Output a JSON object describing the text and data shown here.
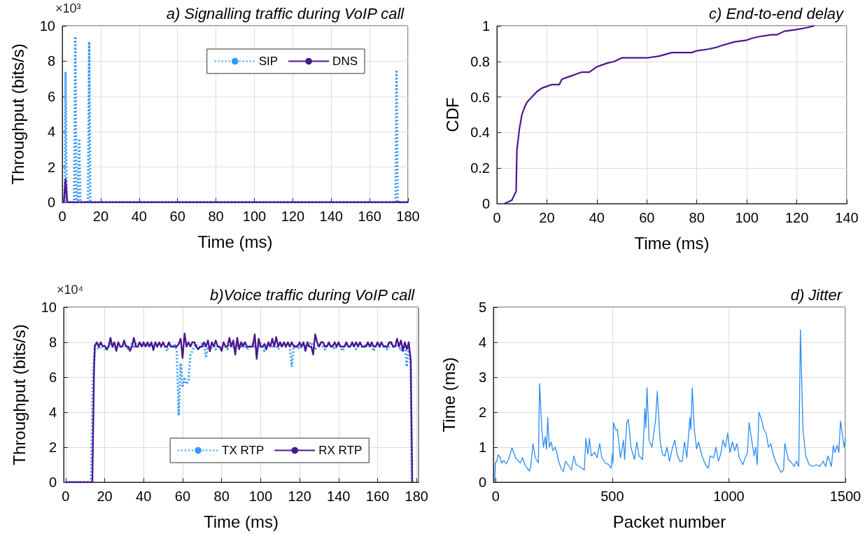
{
  "chart_data": [
    {
      "type": "line",
      "title": "a) Signalling traffic during VoIP call",
      "xlabel": "Time (ms)",
      "ylabel": "Throughput (bits/s)",
      "annotations": [
        "×10³"
      ],
      "xlim": [
        0,
        180
      ],
      "xticks": [
        0,
        20,
        40,
        60,
        80,
        100,
        120,
        140,
        160,
        180
      ],
      "ylim": [
        0,
        10
      ],
      "yticks": [
        0,
        2,
        4,
        6,
        8,
        10
      ],
      "grid": true,
      "legend": "top right",
      "series": [
        {
          "name": "SIP",
          "color": "#3399ff",
          "line_style": "dotted",
          "x": [
            0,
            1.2,
            1.7,
            2.3,
            6.2,
            6.8,
            7.4,
            8.2,
            8.8,
            9.5,
            13.4,
            14,
            14.6,
            173.5,
            174,
            174.6,
            180
          ],
          "values": [
            0,
            0,
            7.4,
            0,
            0,
            9.4,
            0,
            0,
            3.6,
            0,
            0,
            9.1,
            0,
            0,
            7.5,
            0,
            0
          ]
        },
        {
          "name": "DNS",
          "color": "#4b1790",
          "line_style": "solid",
          "x": [
            0,
            0.8,
            1.7,
            2.6,
            180
          ],
          "values": [
            0,
            0,
            1.3,
            0,
            0
          ]
        }
      ]
    },
    {
      "type": "line",
      "title": "c) End-to-end delay",
      "xlabel": "Time (ms)",
      "ylabel": "CDF",
      "xlim": [
        0,
        140
      ],
      "xticks": [
        0,
        20,
        40,
        60,
        80,
        100,
        120,
        140
      ],
      "ylim": [
        0,
        1
      ],
      "yticks": [
        0,
        0.2,
        0.4,
        0.6,
        0.8,
        1
      ],
      "grid": true,
      "series": [
        {
          "color": "#4b1790",
          "line_style": "solid",
          "x": [
            3,
            6,
            7.7,
            8,
            9,
            10,
            11,
            12,
            14,
            16,
            18,
            20,
            22,
            25,
            26,
            28,
            30,
            32,
            34,
            37,
            40,
            42,
            44,
            47,
            50,
            55,
            60,
            65,
            70,
            75,
            78,
            80,
            85,
            88,
            90,
            95,
            100,
            102,
            105,
            110,
            112,
            115,
            120,
            124,
            127
          ],
          "values": [
            0,
            0.02,
            0.07,
            0.3,
            0.42,
            0.5,
            0.54,
            0.57,
            0.6,
            0.63,
            0.65,
            0.66,
            0.67,
            0.67,
            0.7,
            0.71,
            0.72,
            0.73,
            0.74,
            0.74,
            0.77,
            0.78,
            0.79,
            0.8,
            0.82,
            0.82,
            0.82,
            0.83,
            0.85,
            0.85,
            0.85,
            0.86,
            0.87,
            0.88,
            0.89,
            0.91,
            0.92,
            0.93,
            0.94,
            0.95,
            0.95,
            0.97,
            0.98,
            0.99,
            1
          ]
        }
      ]
    },
    {
      "type": "line",
      "title": "b)Voice traffic during VoIP call",
      "xlabel": "Time (ms)",
      "ylabel": "Throughput (bits/s)",
      "annotations": [
        "×10⁴"
      ],
      "xlim": [
        -1,
        181
      ],
      "xticks": [
        0,
        20,
        40,
        60,
        80,
        100,
        120,
        140,
        160,
        180
      ],
      "ylim": [
        0,
        10
      ],
      "yticks": [
        0,
        2,
        4,
        6,
        8,
        10
      ],
      "grid": true,
      "legend": "bottom",
      "series": [
        {
          "name": "TX RTP",
          "color": "#3399ff",
          "line_style": "dotted",
          "x": [
            0,
            13,
            14,
            15,
            16,
            17,
            18,
            19,
            20,
            21,
            22,
            23,
            24,
            25,
            26,
            27,
            28,
            29,
            30,
            31,
            32,
            33,
            34,
            35,
            36,
            37,
            38,
            39,
            40,
            41,
            42,
            43,
            44,
            45,
            46,
            47,
            48,
            49,
            50,
            51,
            52,
            53,
            54,
            55,
            56,
            57,
            58,
            59,
            60,
            61,
            62,
            63,
            64,
            65,
            66,
            67,
            68,
            69,
            70,
            71,
            72,
            73,
            74,
            75,
            76,
            77,
            78,
            79,
            80,
            81,
            82,
            83,
            84,
            85,
            86,
            87,
            88,
            89,
            90,
            91,
            92,
            93,
            94,
            95,
            96,
            97,
            98,
            99,
            100,
            101,
            102,
            103,
            104,
            105,
            106,
            107,
            108,
            109,
            110,
            111,
            112,
            113,
            114,
            115,
            116,
            117,
            118,
            119,
            120,
            121,
            122,
            123,
            124,
            125,
            126,
            127,
            128,
            129,
            130,
            131,
            132,
            133,
            134,
            135,
            136,
            137,
            138,
            139,
            140,
            141,
            142,
            143,
            144,
            145,
            146,
            147,
            148,
            149,
            150,
            151,
            152,
            153,
            154,
            155,
            156,
            157,
            158,
            159,
            160,
            161,
            162,
            163,
            164,
            165,
            166,
            167,
            168,
            169,
            170,
            171,
            172,
            173,
            174,
            175,
            176,
            177,
            177.5
          ],
          "values": [
            0,
            0,
            6.0,
            7.9,
            7.75,
            7.6,
            7.75,
            7.9,
            7.75,
            7.5,
            7.75,
            7.9,
            7.75,
            7.75,
            7.6,
            7.9,
            7.75,
            7.75,
            7.9,
            7.75,
            7.6,
            7.75,
            7.9,
            7.75,
            7.9,
            7.75,
            8.0,
            7.75,
            7.9,
            7.75,
            7.9,
            7.75,
            7.9,
            7.75,
            7.9,
            7.75,
            7.9,
            7.75,
            7.9,
            7.75,
            7.5,
            7.9,
            7.75,
            7.75,
            7.9,
            7.5,
            3.8,
            6.8,
            5.5,
            5.9,
            5.6,
            5.8,
            7.3,
            7.5,
            7.75,
            7.9,
            7.6,
            7.75,
            7.9,
            7.75,
            7.2,
            7.75,
            7.5,
            7.75,
            7.9,
            7.6,
            7.75,
            7.75,
            7.6,
            7.9,
            7.75,
            7.6,
            7.9,
            7.75,
            7.75,
            7.6,
            7.9,
            7.75,
            7.75,
            7.9,
            7.75,
            7.6,
            7.75,
            7.75,
            7.9,
            7.75,
            7.6,
            7.75,
            7.9,
            7.75,
            7.5,
            7.75,
            7.9,
            7.75,
            7.75,
            7.9,
            7.75,
            7.6,
            7.75,
            7.9,
            7.75,
            7.75,
            7.9,
            7.75,
            6.6,
            7.75,
            7.9,
            7.75,
            7.6,
            7.75,
            7.9,
            7.75,
            7.75,
            7.9,
            8.0,
            7.75,
            7.6,
            7.75,
            7.9,
            7.75,
            7.75,
            7.6,
            7.9,
            7.75,
            7.9,
            7.75,
            7.6,
            7.75,
            7.9,
            7.75,
            7.5,
            7.75,
            7.9,
            7.75,
            7.75,
            7.9,
            7.75,
            7.6,
            7.75,
            7.9,
            7.75,
            7.75,
            7.9,
            7.75,
            7.9,
            7.75,
            7.5,
            7.75,
            7.9,
            7.75,
            7.75,
            7.9,
            7.75,
            7.6,
            7.75,
            7.9,
            7.75,
            7.75,
            7.9,
            7.75,
            7.5,
            7.75,
            7.9,
            6.6,
            7.75,
            6.8,
            0
          ]
        },
        {
          "name": "RX RTP",
          "color": "#4b1790",
          "line_style": "solid",
          "x": [
            0,
            13.7,
            14.6,
            15,
            16,
            17,
            18,
            19,
            20,
            21,
            22,
            23,
            24,
            25,
            26,
            27,
            28,
            29,
            30,
            31,
            32,
            33,
            34,
            35,
            36,
            37,
            38,
            39,
            40,
            41,
            42,
            43,
            44,
            45,
            46,
            47,
            48,
            49,
            50,
            51,
            52,
            53,
            54,
            55,
            56,
            57,
            58,
            59,
            60,
            61,
            62,
            63,
            64,
            65,
            66,
            67,
            68,
            69,
            70,
            71,
            72,
            73,
            74,
            75,
            76,
            77,
            78,
            79,
            80,
            81,
            82,
            83,
            84,
            85,
            86,
            87,
            88,
            89,
            90,
            91,
            92,
            93,
            94,
            95,
            96,
            97,
            98,
            99,
            100,
            101,
            102,
            103,
            104,
            105,
            106,
            107,
            108,
            109,
            110,
            111,
            112,
            113,
            114,
            115,
            116,
            117,
            118,
            119,
            120,
            121,
            122,
            123,
            124,
            125,
            126,
            127,
            128,
            129,
            130,
            131,
            132,
            133,
            134,
            135,
            136,
            137,
            138,
            139,
            140,
            141,
            142,
            143,
            144,
            145,
            146,
            147,
            148,
            149,
            150,
            151,
            152,
            153,
            154,
            155,
            156,
            157,
            158,
            159,
            160,
            161,
            162,
            163,
            164,
            165,
            166,
            167,
            168,
            169,
            170,
            171,
            172,
            173,
            174,
            175,
            176,
            177,
            177.8
          ],
          "values": [
            0,
            0,
            6.5,
            7.8,
            8.0,
            7.75,
            8.0,
            7.75,
            7.8,
            7.6,
            7.75,
            8.25,
            7.75,
            8.0,
            7.5,
            8.0,
            7.75,
            7.75,
            8.1,
            7.75,
            7.75,
            7.5,
            7.75,
            8.25,
            7.75,
            7.75,
            8.0,
            7.75,
            8.0,
            7.75,
            8.0,
            7.75,
            8.0,
            7.55,
            8.0,
            7.75,
            8.0,
            7.75,
            8.0,
            7.75,
            7.75,
            8.0,
            7.75,
            7.75,
            7.75,
            7.75,
            7.9,
            8.2,
            7.1,
            8.5,
            7.75,
            8.0,
            7.75,
            8.0,
            8.0,
            7.75,
            7.6,
            7.75,
            7.75,
            8.0,
            7.75,
            8.1,
            7.5,
            8.0,
            7.75,
            8.1,
            7.75,
            7.75,
            7.5,
            8.0,
            7.75,
            7.75,
            8.25,
            7.75,
            8.1,
            7.3,
            8.25,
            7.6,
            8.0,
            7.75,
            8.0,
            7.75,
            7.75,
            7.75,
            7.75,
            8.45,
            7.05,
            8.2,
            7.75,
            7.75,
            7.9,
            7.6,
            8.0,
            7.75,
            8.2,
            7.75,
            8.3,
            7.75,
            8.0,
            7.75,
            8.0,
            7.75,
            8.0,
            7.75,
            8.0,
            7.75,
            7.75,
            7.75,
            8.0,
            7.75,
            8.0,
            7.5,
            8.0,
            7.75,
            7.75,
            7.3,
            8.45,
            8.0,
            7.75,
            8.0,
            8.0,
            7.75,
            7.75,
            8.0,
            7.75,
            7.75,
            8.0,
            7.75,
            8.0,
            7.75,
            7.75,
            7.75,
            8.0,
            7.75,
            7.75,
            8.0,
            7.75,
            8.0,
            7.75,
            8.0,
            7.75,
            7.75,
            7.75,
            8.0,
            7.75,
            8.0,
            7.75,
            7.75,
            8.0,
            7.75,
            8.0,
            7.75,
            7.75,
            7.75,
            8.0,
            8.0,
            7.75,
            7.75,
            8.2,
            7.75,
            8.1,
            7.5,
            8.0,
            7.6,
            8.0,
            7.0,
            0
          ]
        }
      ]
    },
    {
      "type": "line",
      "title": "d) Jitter",
      "xlabel": "Packet number",
      "ylabel": "Time (ms)",
      "xlim": [
        -10,
        1500
      ],
      "xticks": [
        0,
        500,
        1000,
        1500
      ],
      "ylim": [
        0,
        5
      ],
      "yticks": [
        0,
        1,
        2,
        3,
        4,
        5
      ],
      "grid": true,
      "series": [
        {
          "color": "#2a8cf0",
          "line_style": "solid",
          "x": [
            -5,
            -2,
            5,
            10,
            18,
            25,
            35,
            45,
            55,
            70,
            85,
            95,
            105,
            115,
            125,
            135,
            145,
            150,
            160,
            170,
            183,
            188,
            198,
            205,
            212,
            218,
            223,
            230,
            238,
            245,
            255,
            262,
            270,
            280,
            290,
            300,
            315,
            325,
            335,
            345,
            360,
            380,
            387,
            395,
            402,
            410,
            425,
            435,
            446,
            455,
            470,
            485,
            495,
            500,
            503,
            505,
            515,
            522,
            535,
            548,
            553,
            562,
            569,
            580,
            595,
            605,
            615,
            630,
            640,
            644,
            649,
            658,
            670,
            686,
            693,
            705,
            715,
            725,
            735,
            745,
            757,
            768,
            778,
            790,
            800,
            810,
            820,
            833,
            837,
            843,
            852,
            862,
            870,
            885,
            900,
            912,
            920,
            935,
            945,
            955,
            965,
            975,
            985,
            995,
            1005,
            1015,
            1025,
            1035,
            1045,
            1060,
            1070,
            1080,
            1087,
            1097,
            1108,
            1115,
            1122,
            1129,
            1140,
            1150,
            1160,
            1170,
            1180,
            1190,
            1200,
            1215,
            1224,
            1235,
            1240,
            1255,
            1270,
            1280,
            1290,
            1300,
            1307,
            1318,
            1330,
            1345,
            1360,
            1375,
            1390,
            1405,
            1415,
            1425,
            1440,
            1448,
            1455,
            1465,
            1472,
            1479,
            1488,
            1495,
            1500
          ],
          "values": [
            0,
            0.55,
            0.6,
            0.78,
            0.72,
            0.55,
            0.62,
            0.52,
            0.65,
            0.98,
            0.7,
            0.62,
            0.55,
            0.7,
            0.5,
            0.4,
            0.32,
            0.45,
            1.1,
            0.7,
            0.55,
            2.82,
            1.5,
            1.0,
            1.3,
            0.95,
            1.85,
            1.0,
            1.15,
            0.9,
            1.0,
            0.85,
            0.6,
            0.4,
            0.3,
            0.6,
            0.45,
            0.35,
            0.75,
            0.5,
            0.45,
            0.35,
            1.25,
            0.8,
            1.25,
            0.75,
            0.85,
            0.7,
            1.1,
            0.7,
            0.55,
            0.5,
            0.4,
            0.8,
            0.55,
            1.7,
            1.5,
            1.5,
            0.7,
            1.2,
            0.65,
            1.7,
            1.8,
            1.0,
            0.65,
            1.15,
            0.75,
            0.65,
            2.1,
            1.55,
            2.7,
            1.2,
            1.0,
            1.8,
            2.6,
            1.2,
            0.8,
            0.75,
            1.0,
            0.6,
            0.95,
            1.2,
            0.8,
            0.6,
            0.6,
            1.15,
            0.7,
            1.85,
            1.5,
            2.7,
            1.5,
            0.95,
            1.15,
            0.75,
            0.5,
            0.4,
            0.75,
            0.7,
            1.0,
            0.6,
            0.8,
            1.2,
            1.0,
            1.4,
            0.85,
            1.15,
            0.9,
            1.1,
            0.7,
            0.5,
            0.7,
            0.85,
            1.7,
            1.25,
            0.75,
            1.0,
            0.5,
            2.0,
            1.8,
            1.5,
            1.4,
            1.0,
            1.1,
            0.8,
            0.6,
            0.4,
            0.28,
            0.35,
            1.1,
            0.65,
            0.55,
            0.45,
            0.6,
            0.45,
            4.35,
            1.5,
            0.75,
            0.5,
            0.45,
            0.5,
            0.45,
            0.6,
            0.45,
            0.75,
            0.45,
            1.05,
            0.85,
            1.05,
            0.85,
            1.75,
            1.3,
            1.0,
            1.25
          ]
        }
      ]
    }
  ]
}
